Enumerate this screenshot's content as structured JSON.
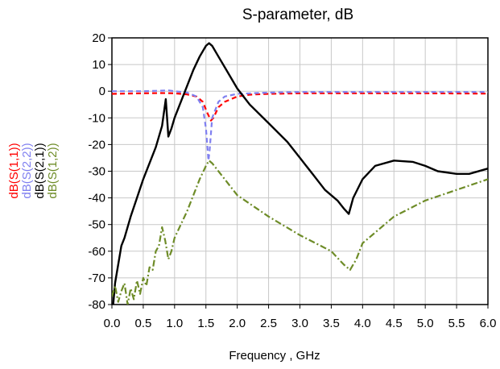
{
  "chart_data": {
    "type": "line",
    "title": "S-parameter, dB",
    "xlabel": "Frequency , GHz",
    "ylabel": "",
    "xlim": [
      0,
      6
    ],
    "ylim": [
      -80,
      20
    ],
    "grid": true,
    "xticks": [
      0,
      0.5,
      1,
      1.5,
      2,
      2.5,
      3,
      3.5,
      4,
      4.5,
      5,
      5.5,
      6
    ],
    "xtick_labels": [
      "0.0",
      "0.5",
      "1.0",
      "1.5",
      "2.0",
      "2.5",
      "3.0",
      "3.5",
      "4.0",
      "4.5",
      "5.0",
      "5.5",
      "6.0"
    ],
    "yticks": [
      20,
      10,
      0,
      -10,
      -20,
      -30,
      -40,
      -50,
      -60,
      -70,
      -80
    ],
    "ytick_labels": [
      "20",
      "10",
      "0",
      "-10",
      "-20",
      "-30",
      "-40",
      "-50",
      "-60",
      "-70",
      "-80"
    ],
    "legend_placement": "left-vertical",
    "series": [
      {
        "name": "dB(S(1,1))",
        "color": "#ff0000",
        "dash": "dashed",
        "x": [
          0.0,
          0.5,
          0.8,
          1.0,
          1.2,
          1.35,
          1.45,
          1.52,
          1.58,
          1.62,
          1.7,
          1.8,
          2.0,
          2.2,
          2.5,
          3.0,
          4.0,
          5.0,
          6.0
        ],
        "y": [
          -1.0,
          -0.8,
          -0.7,
          -0.8,
          -1.2,
          -2.0,
          -4.0,
          -8.0,
          -11.0,
          -10.0,
          -6.0,
          -4.0,
          -2.0,
          -1.3,
          -1.0,
          -0.8,
          -0.8,
          -0.8,
          -0.9
        ]
      },
      {
        "name": "dB(S(2,2))",
        "color": "#8080f0",
        "dash": "dashed",
        "x": [
          0.0,
          0.5,
          0.8,
          0.9,
          1.0,
          1.2,
          1.35,
          1.45,
          1.5,
          1.54,
          1.56,
          1.6,
          1.7,
          1.8,
          2.0,
          2.5,
          3.0,
          4.0,
          5.0,
          6.0
        ],
        "y": [
          0.0,
          0.0,
          0.2,
          0.3,
          0.0,
          -0.5,
          -2.0,
          -6.0,
          -14.0,
          -26.0,
          -22.0,
          -10.0,
          -4.0,
          -2.0,
          -1.0,
          -0.5,
          -0.3,
          -0.3,
          -0.3,
          -0.3
        ]
      },
      {
        "name": "dB(S(2,1))",
        "color": "#000000",
        "dash": "solid",
        "x": [
          0.02,
          0.05,
          0.1,
          0.15,
          0.2,
          0.3,
          0.4,
          0.5,
          0.6,
          0.7,
          0.8,
          0.86,
          0.9,
          0.95,
          1.0,
          1.1,
          1.2,
          1.3,
          1.4,
          1.5,
          1.55,
          1.6,
          1.7,
          1.8,
          2.0,
          2.2,
          2.5,
          2.8,
          3.0,
          3.2,
          3.4,
          3.6,
          3.7,
          3.78,
          3.85,
          4.0,
          4.2,
          4.5,
          4.8,
          5.0,
          5.2,
          5.5,
          5.7,
          6.0
        ],
        "y": [
          -80,
          -72,
          -65,
          -58,
          -55,
          -47,
          -40,
          -33,
          -27,
          -21,
          -13,
          -3,
          -17,
          -14,
          -10,
          -4,
          2,
          8,
          13,
          17,
          18,
          17,
          13,
          9,
          1,
          -5,
          -12,
          -19,
          -25,
          -31,
          -37,
          -41,
          -44,
          -46,
          -40,
          -33,
          -28,
          -26,
          -26.5,
          -28,
          -30,
          -31,
          -31,
          -29
        ]
      },
      {
        "name": "dB(S(1,2))",
        "color": "#6e8c28",
        "dash": "dashdot",
        "x": [
          0.0,
          0.05,
          0.1,
          0.15,
          0.2,
          0.25,
          0.3,
          0.35,
          0.4,
          0.45,
          0.5,
          0.55,
          0.6,
          0.65,
          0.7,
          0.75,
          0.8,
          0.85,
          0.9,
          0.95,
          1.0,
          1.2,
          1.4,
          1.5,
          1.55,
          1.6,
          1.8,
          2.0,
          2.5,
          3.0,
          3.5,
          3.7,
          3.8,
          3.9,
          4.0,
          4.5,
          5.0,
          5.5,
          6.0
        ],
        "y": [
          -77,
          -73,
          -79,
          -75,
          -72,
          -80,
          -74,
          -78,
          -71,
          -76,
          -70,
          -73,
          -66,
          -67,
          -60,
          -58,
          -51,
          -56,
          -63,
          -60,
          -55,
          -45,
          -33,
          -28,
          -26,
          -27,
          -33,
          -39,
          -47,
          -54,
          -60,
          -65,
          -67,
          -63,
          -57,
          -47,
          -41,
          -37,
          -33
        ]
      }
    ]
  }
}
